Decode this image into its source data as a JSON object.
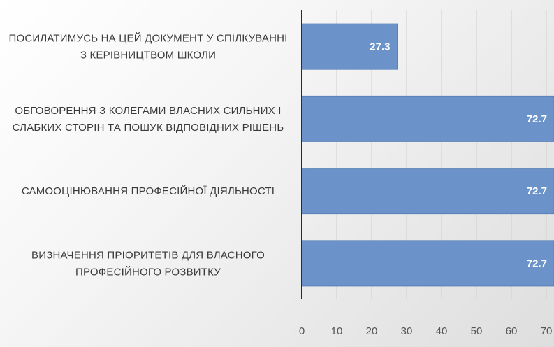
{
  "chart_data": {
    "type": "bar",
    "orientation": "horizontal",
    "categories": [
      [
        "ПОСИЛАТИМУСЬ НА ЦЕЙ ДОКУМЕНТ У СПІЛКУВАННІ",
        "З КЕРІВНИЦТВОМ ШКОЛИ"
      ],
      [
        "ОБГОВОРЕННЯ З КОЛЕГАМИ ВЛАСНИХ СИЛЬНИХ І",
        "СЛАБКИХ СТОРІН ТА ПОШУК ВІДПОВІДНИХ РІШЕНЬ"
      ],
      [
        "САМООЦІНЮВАННЯ ПРОФЕСІЙНОЇ ДІЯЛЬНОСТІ"
      ],
      [
        "ВИЗНАЧЕННЯ ПРІОРИТЕТІВ ДЛЯ ВЛАСНОГО",
        "ПРОФЕСІЙНОГО РОЗВИТКУ"
      ]
    ],
    "values": [
      27.3,
      72.7,
      72.7,
      72.7
    ],
    "data_labels": [
      "27.3",
      "72.7",
      "72.7",
      "72.7"
    ],
    "xticks": [
      "0",
      "10",
      "20",
      "30",
      "40",
      "50",
      "60",
      "70"
    ],
    "xlim": [
      0,
      72.2
    ],
    "grid": true,
    "bar_color": "#6b93c9",
    "grid_color": "#cfcfcf"
  }
}
